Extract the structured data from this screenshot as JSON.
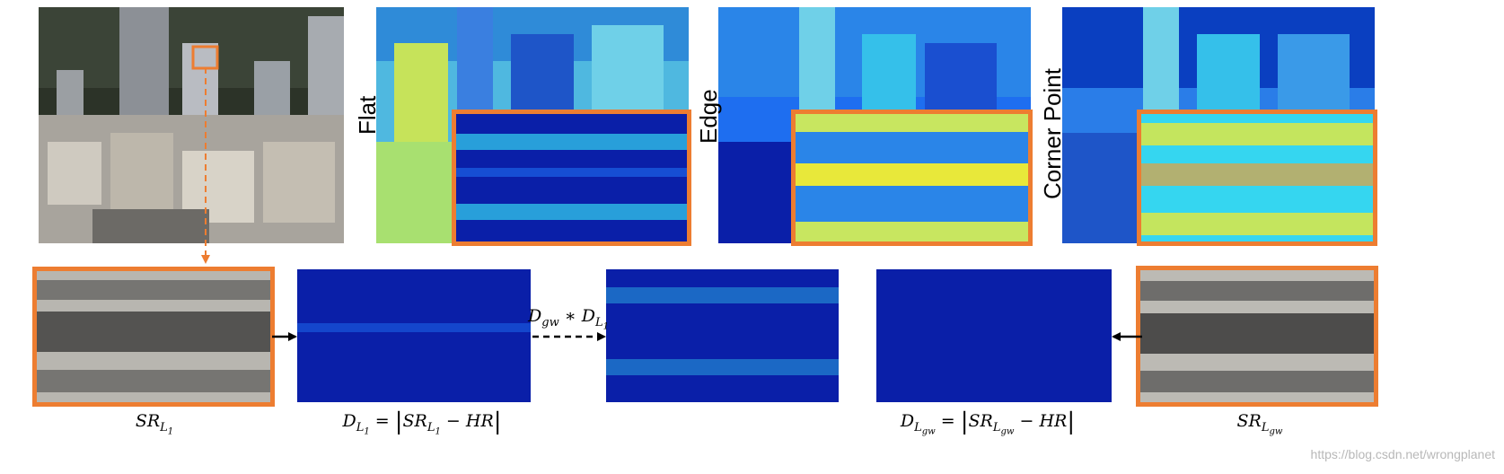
{
  "labels": {
    "flat": "Flat",
    "edge": "Edge",
    "corner": "Corner Point"
  },
  "formulas": {
    "sr_l1": {
      "main": "SR",
      "sub": "L",
      "subsub": "1"
    },
    "d_l1": {
      "d": "D",
      "sub": "L",
      "subsub": "1",
      "eq": "=",
      "sr": "SR",
      "minus": "−",
      "hr": "HR"
    },
    "mult": {
      "d1": "D",
      "d1sub": "gw",
      "star": "∗",
      "d2": "D",
      "d2sub": "L",
      "d2subsub": "1"
    },
    "d_lgw": {
      "d": "D",
      "sub": "L",
      "subsub": "gw",
      "eq": "=",
      "sr": "SR",
      "minus": "−",
      "hr": "HR"
    },
    "sr_lgw": {
      "main": "SR",
      "sub": "L",
      "subsub": "gw"
    }
  },
  "watermark": "https://blog.csdn.net/wrongplanet",
  "colors": {
    "orange": "#ED7D31",
    "heat_dark": "#0a1fa8",
    "heat_mid": "#1e6ef0",
    "heat_cyan": "#35d6f0",
    "heat_yellow": "#e8e83a",
    "heat_red": "#e8321e"
  }
}
